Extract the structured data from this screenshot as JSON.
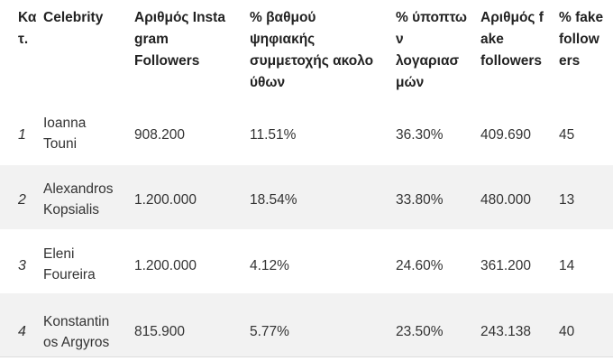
{
  "table": {
    "headers": [
      "Κα\nτ.",
      "Celebrity",
      "Αριθμός Insta\ngram\nFollowers",
      "% βαθμού\nψηφιακής\nσυμμετοχής ακολο\nύθων",
      "% ύποπτω\nν\nλογαριασ\nμών",
      "Αριθμός f\nake\nfollowers",
      "% fake\nfollow\ners"
    ],
    "rows": [
      {
        "rank": "1",
        "name": "Ioanna\nTouni",
        "followers": "908.200",
        "engagement": "11.51%",
        "suspicious": "36.30%",
        "fake_followers": "409.690",
        "fake_pct": "45"
      },
      {
        "rank": "2",
        "name": "Alexandros\nKopsialis",
        "followers": "1.200.000",
        "engagement": "18.54%",
        "suspicious": "33.80%",
        "fake_followers": "480.000",
        "fake_pct": "13"
      },
      {
        "rank": "3",
        "name": "Eleni\nFoureira",
        "followers": "1.200.000",
        "engagement": "4.12%",
        "suspicious": "24.60%",
        "fake_followers": "361.200",
        "fake_pct": "14"
      },
      {
        "rank": "4",
        "name": "Konstantin\nos Argyros",
        "followers": "815.900",
        "engagement": "5.77%",
        "suspicious": "23.50%",
        "fake_followers": "243.138",
        "fake_pct": "40"
      }
    ]
  }
}
